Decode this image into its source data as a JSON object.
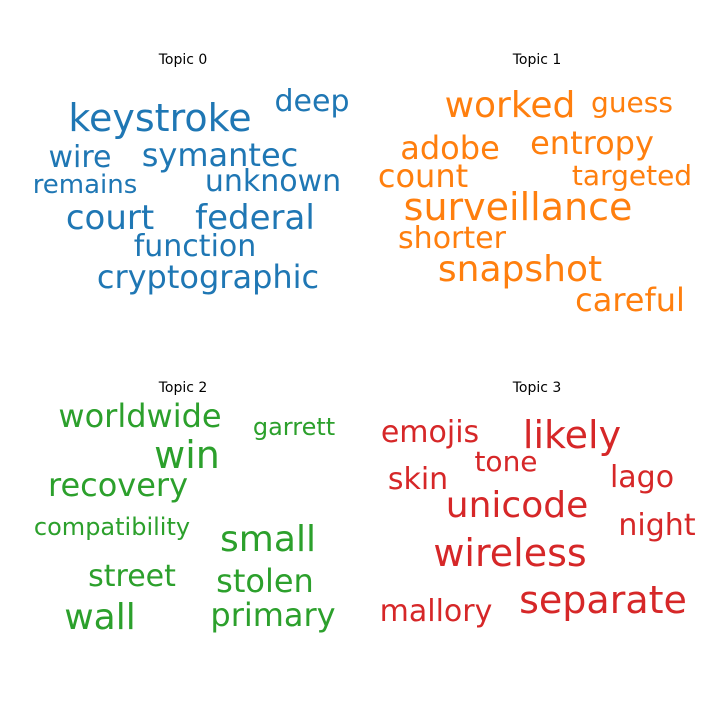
{
  "chart_data": {
    "type": "wordcloud",
    "panels": [
      {
        "title": "Topic 0",
        "color": "#1f77b4",
        "words": [
          "keystroke",
          "deep",
          "wire",
          "symantec",
          "remains",
          "unknown",
          "court",
          "federal",
          "function",
          "cryptographic"
        ]
      },
      {
        "title": "Topic 1",
        "color": "#ff7f0e",
        "words": [
          "worked",
          "guess",
          "adobe",
          "entropy",
          "count",
          "targeted",
          "surveillance",
          "shorter",
          "snapshot",
          "careful"
        ]
      },
      {
        "title": "Topic 2",
        "color": "#2ca02c",
        "words": [
          "worldwide",
          "garrett",
          "win",
          "recovery",
          "compatibility",
          "small",
          "street",
          "stolen",
          "wall",
          "primary"
        ]
      },
      {
        "title": "Topic 3",
        "color": "#d62728",
        "words": [
          "emojis",
          "likely",
          "tone",
          "skin",
          "lago",
          "unicode",
          "night",
          "wireless",
          "separate",
          "mallory"
        ]
      }
    ]
  }
}
